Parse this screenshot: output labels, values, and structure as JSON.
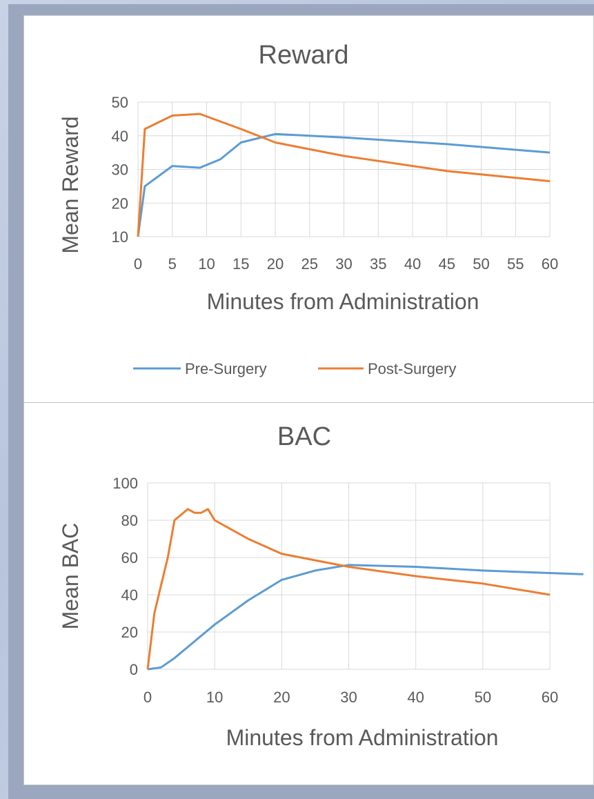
{
  "colors": {
    "pre": "#5b9bd5",
    "post": "#ed7d31"
  },
  "chart_data": [
    {
      "type": "line",
      "title": "Reward",
      "xlabel": "Minutes from Administration",
      "ylabel": "Mean Reward",
      "ylim": [
        10,
        50
      ],
      "yticks": [
        "10",
        "20",
        "30",
        "40",
        "50"
      ],
      "x_categories": [
        "0",
        "5",
        "10",
        "15",
        "20",
        "25",
        "30",
        "35",
        "40",
        "45",
        "50",
        "55",
        "60"
      ],
      "grid": true,
      "legend_position": "bottom",
      "series": [
        {
          "name": "Pre-Surgery",
          "x": [
            0,
            1,
            5,
            9,
            12,
            15,
            20,
            30,
            45,
            60
          ],
          "y": [
            10,
            25,
            31,
            30.5,
            33,
            38,
            40.5,
            39.5,
            37.5,
            35
          ]
        },
        {
          "name": "Post-Surgery",
          "x": [
            0,
            1,
            5,
            9,
            15,
            20,
            30,
            45,
            60
          ],
          "y": [
            10,
            42,
            46,
            46.5,
            42,
            38,
            34,
            29.5,
            26.5
          ]
        }
      ]
    },
    {
      "type": "line",
      "title": "BAC",
      "xlabel": "Minutes from Administration",
      "ylabel": "Mean BAC",
      "ylim": [
        0,
        100
      ],
      "yticks": [
        "0",
        "20",
        "40",
        "60",
        "80",
        "100"
      ],
      "xlim": [
        0,
        60
      ],
      "xticks": [
        "0",
        "10",
        "20",
        "30",
        "40",
        "50",
        "60"
      ],
      "grid": true,
      "series": [
        {
          "name": "Pre-Surgery",
          "x": [
            0,
            2,
            4,
            6,
            8,
            10,
            15,
            20,
            25,
            30,
            40,
            50,
            65
          ],
          "y": [
            0,
            1,
            6,
            12,
            18,
            24,
            37,
            48,
            53,
            56,
            55,
            53,
            51
          ]
        },
        {
          "name": "Post-Surgery",
          "x": [
            0,
            1,
            2,
            3,
            4,
            6,
            7,
            8,
            9,
            10,
            15,
            20,
            30,
            40,
            50,
            60
          ],
          "y": [
            0,
            30,
            45,
            60,
            80,
            86,
            84,
            84,
            86,
            80,
            70,
            62,
            55,
            50,
            46,
            40
          ]
        }
      ]
    }
  ]
}
